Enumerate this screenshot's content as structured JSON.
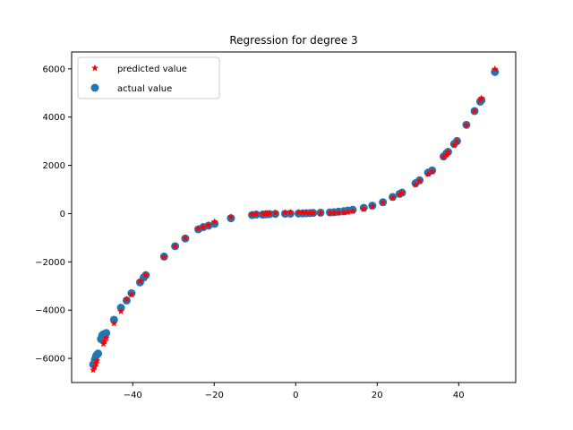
{
  "chart_data": {
    "type": "scatter",
    "title": "Regression for degree 3",
    "xlabel": "",
    "ylabel": "",
    "xlim": [
      -55,
      54
    ],
    "ylim": [
      -7000,
      6700
    ],
    "xticks": [
      -40,
      -20,
      0,
      20,
      40
    ],
    "yticks": [
      -6000,
      -4000,
      -2000,
      0,
      2000,
      4000,
      6000
    ],
    "grid": false,
    "legend": {
      "placement": "upper-left",
      "entries": [
        {
          "label": "predicted value",
          "marker": "star",
          "color": "#ff0000"
        },
        {
          "label": "actual value",
          "marker": "circle",
          "color": "#1f77b4"
        }
      ]
    },
    "series": [
      {
        "name": "actual value",
        "marker": "circle",
        "color": "#1f77b4",
        "x": [
          -49.7,
          -49.3,
          -49.0,
          -48.8,
          -48.5,
          -47.8,
          -47.5,
          -47.2,
          -46.9,
          -46.5,
          -44.6,
          -42.9,
          -41.5,
          -40.3,
          -38.2,
          -37.3,
          -36.8,
          -32.3,
          -29.6,
          -27.1,
          -23.9,
          -22.7,
          -21.4,
          -19.9,
          -15.9,
          -10.7,
          -9.7,
          -8.1,
          -7.4,
          -7.0,
          -6.4,
          -5.0,
          -2.6,
          -1.3,
          0.7,
          1.7,
          2.6,
          3.5,
          4.3,
          6.1,
          8.4,
          9.4,
          10.5,
          11.8,
          12.8,
          14.0,
          16.7,
          18.8,
          21.4,
          23.8,
          25.5,
          26.1,
          29.4,
          30.4,
          32.5,
          33.5,
          36.3,
          37.0,
          37.4,
          38.9,
          39.6,
          41.9,
          43.9,
          45.3,
          45.6,
          48.9
        ],
        "y": [
          -6250,
          -6050,
          -5900,
          -5850,
          -5800,
          -5200,
          -5050,
          -5000,
          -5050,
          -4950,
          -4400,
          -3900,
          -3600,
          -3300,
          -2850,
          -2650,
          -2550,
          -1780,
          -1350,
          -1030,
          -650,
          -560,
          -500,
          -420,
          -190,
          -60,
          -40,
          -40,
          -30,
          -25,
          -20,
          -10,
          -5,
          0,
          5,
          10,
          15,
          20,
          30,
          40,
          50,
          60,
          80,
          100,
          130,
          160,
          240,
          330,
          470,
          690,
          820,
          870,
          1260,
          1380,
          1700,
          1790,
          2370,
          2500,
          2560,
          2890,
          3010,
          3680,
          4250,
          4640,
          4700,
          5870
        ]
      },
      {
        "name": "predicted value",
        "marker": "star",
        "color": "#ff0000",
        "x": [
          -49.7,
          -49.3,
          -49.0,
          -48.8,
          -47.2,
          -46.9,
          -46.5,
          -44.6,
          -42.9,
          -41.5,
          -40.3,
          -38.2,
          -36.8,
          -32.3,
          -29.6,
          -27.1,
          -23.9,
          -22.7,
          -21.4,
          -19.9,
          -15.9,
          -10.7,
          -9.7,
          -8.1,
          -7.4,
          -7.0,
          -6.4,
          -5.0,
          -2.6,
          -1.3,
          0.7,
          1.7,
          2.6,
          3.5,
          4.3,
          6.1,
          8.4,
          9.4,
          10.5,
          11.8,
          12.8,
          14.0,
          16.7,
          18.8,
          21.4,
          23.8,
          25.5,
          26.1,
          29.4,
          30.4,
          32.5,
          33.5,
          36.3,
          37.0,
          37.4,
          38.9,
          39.6,
          41.9,
          43.9,
          45.3,
          45.6,
          48.9
        ],
        "y": [
          -6480,
          -6350,
          -6200,
          -6100,
          -5400,
          -5300,
          -5150,
          -4550,
          -4050,
          -3550,
          -3350,
          -2800,
          -2550,
          -1800,
          -1350,
          -1010,
          -620,
          -560,
          -480,
          -340,
          -140,
          -30,
          -20,
          -10,
          0,
          0,
          10,
          20,
          30,
          40,
          50,
          50,
          40,
          30,
          30,
          20,
          20,
          30,
          30,
          40,
          60,
          100,
          190,
          300,
          460,
          660,
          790,
          860,
          1200,
          1350,
          1640,
          1740,
          2340,
          2440,
          2540,
          2840,
          2990,
          3660,
          4250,
          4700,
          4780,
          5990
        ]
      }
    ]
  }
}
